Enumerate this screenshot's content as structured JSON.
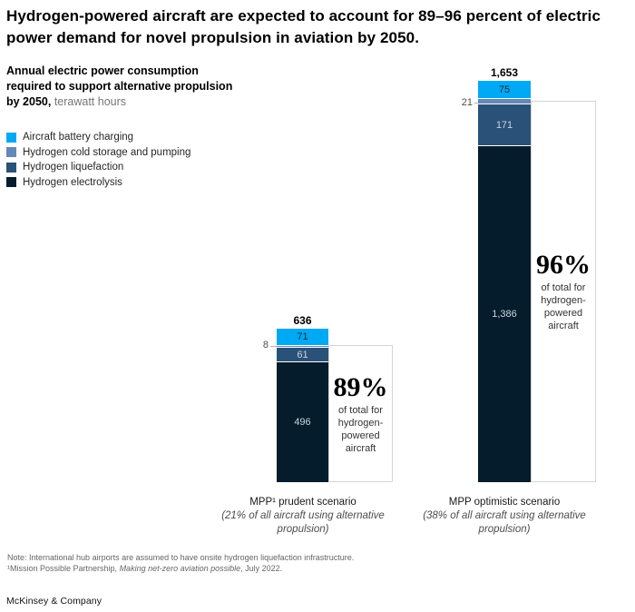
{
  "header": {
    "title": "Hydrogen-powered aircraft are expected to account for 89–96 percent of electric power demand for novel propulsion in aviation by 2050.",
    "subtitle_bold": "Annual electric power consumption required to support alternative propulsion by 2050,",
    "subtitle_unit": " terawatt hours"
  },
  "legend": {
    "items": [
      {
        "label": "Aircraft battery charging",
        "color": "#00A9F4"
      },
      {
        "label": "Hydrogen cold storage and pumping",
        "color": "#6389B8"
      },
      {
        "label": "Hydrogen liquefaction",
        "color": "#2A5279"
      },
      {
        "label": "Hydrogen electrolysis",
        "color": "#051C2C"
      }
    ]
  },
  "chart_data": {
    "type": "bar",
    "stacked": true,
    "title": "Annual electric power consumption required to support alternative propulsion by 2050",
    "ylabel": "terawatt hours",
    "ylim": [
      0,
      1700
    ],
    "grid": false,
    "legend_position": "top-left",
    "series_top_to_bottom": [
      "Aircraft battery charging",
      "Hydrogen cold storage and pumping",
      "Hydrogen liquefaction",
      "Hydrogen electrolysis"
    ],
    "categories": [
      "MPP¹ prudent scenario",
      "MPP optimistic scenario"
    ],
    "scenarios": [
      {
        "name": "MPP¹ prudent scenario",
        "detail": "(21% of all aircraft using alternative propulsion)",
        "total_value": 636,
        "total_label": "636",
        "values": [
          71,
          8,
          61,
          496
        ],
        "labels": [
          "71",
          "8",
          "61",
          "496"
        ],
        "pct": "89%",
        "pct_caption": "of total for hydrogen-powered aircraft"
      },
      {
        "name": "MPP optimistic scenario",
        "detail": "(38% of all aircraft using alternative propulsion)",
        "total_value": 1653,
        "total_label": "1,653",
        "values": [
          75,
          21,
          171,
          1386
        ],
        "labels": [
          "75",
          "21",
          "171",
          "1,386"
        ],
        "pct": "96%",
        "pct_caption": "of total for hydrogen-powered aircraft"
      }
    ]
  },
  "footnotes": {
    "note": "Note: International hub airports are assumed to have onsite hydrogen liquefaction infrastructure.",
    "source_prefix": "¹Mission Possible Partnership, ",
    "source_italic": "Making net-zero aviation possible",
    "source_suffix": ", July 2022."
  },
  "footer": {
    "logo": "McKinsey & Company"
  }
}
